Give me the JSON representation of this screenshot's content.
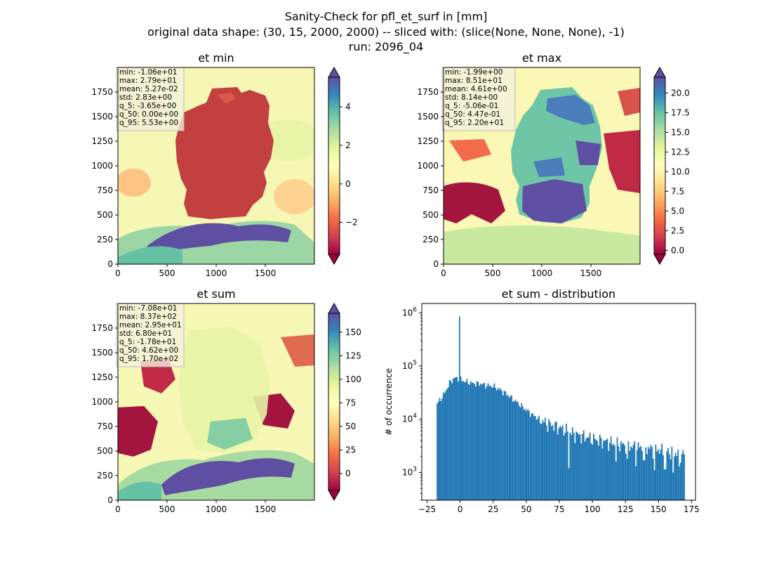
{
  "figure": {
    "title_lines": [
      "Sanity-Check for pfl_et_surf in [mm]",
      "original data shape: (30, 15, 2000, 2000) -- sliced with: (slice(None, None, None), -1)",
      "run: 2096_04"
    ]
  },
  "chart_data": [
    {
      "type": "heatmap",
      "title": "et min",
      "x_ticks": [
        0,
        500,
        1000,
        1500
      ],
      "y_ticks": [
        0,
        250,
        500,
        750,
        1000,
        1250,
        1500,
        1750
      ],
      "xlim": [
        0,
        2000
      ],
      "ylim": [
        0,
        2000
      ],
      "colormap": "Spectral",
      "colorbar": {
        "range": [
          -3.65,
          5.53
        ],
        "ticks": [
          -2,
          0,
          2,
          4
        ],
        "extend": "both"
      },
      "stats": [
        "min: -1.06e+01",
        "max: 2.79e+01",
        "mean: 5.27e-02",
        "std: 2.83e+00",
        "q_5: -3.65e+00",
        "q_50: 0.00e+00",
        "q_95: 5.53e+00"
      ]
    },
    {
      "type": "heatmap",
      "title": "et max",
      "x_ticks": [
        0,
        500,
        1000,
        1500
      ],
      "y_ticks": [
        0,
        250,
        500,
        750,
        1000,
        1250,
        1500,
        1750
      ],
      "xlim": [
        0,
        2000
      ],
      "ylim": [
        0,
        2000
      ],
      "colormap": "Spectral",
      "colorbar": {
        "range": [
          -0.506,
          22.0
        ],
        "ticks": [
          "0.0",
          "2.5",
          "5.0",
          "7.5",
          "10.0",
          "12.5",
          "15.0",
          "17.5",
          "20.0"
        ],
        "extend": "both"
      },
      "stats": [
        "min: -1.99e+00",
        "max: 8.51e+01",
        "mean: 4.61e+00",
        "std: 8.14e+00",
        "q_5: -5.06e-01",
        "q_50: 4.47e-01",
        "q_95: 2.20e+01"
      ]
    },
    {
      "type": "heatmap",
      "title": "et sum",
      "x_ticks": [
        0,
        500,
        1000,
        1500
      ],
      "y_ticks": [
        0,
        250,
        500,
        750,
        1000,
        1250,
        1500,
        1750
      ],
      "xlim": [
        0,
        2000
      ],
      "ylim": [
        0,
        2000
      ],
      "colormap": "Spectral",
      "colorbar": {
        "range": [
          -17.8,
          170.0
        ],
        "ticks": [
          0,
          25,
          50,
          75,
          100,
          125,
          150
        ],
        "extend": "both"
      },
      "stats": [
        "min: -7.08e+01",
        "max: 8.37e+02",
        "mean: 2.95e+01",
        "std: 6.80e+01",
        "q_5: -1.78e+01",
        "q_50: 4.62e+00",
        "q_95: 1.70e+02"
      ]
    },
    {
      "type": "bar",
      "title": "et sum - distribution",
      "ylabel": "# of occurrence",
      "xlabel": "",
      "yscale": "log",
      "xlim": [
        -29,
        178
      ],
      "ylim": [
        300,
        1500000
      ],
      "x_ticks": [
        -25,
        0,
        25,
        50,
        75,
        100,
        125,
        150,
        175
      ],
      "y_ticks": [
        {
          "value": 1000,
          "label": "10^3"
        },
        {
          "value": 10000,
          "label": "10^4"
        },
        {
          "value": 100000,
          "label": "10^5"
        },
        {
          "value": 1000000,
          "label": "10^6"
        }
      ],
      "color": "#1f77b4",
      "bins": {
        "start": -17.8,
        "end": 170.0,
        "count": 200
      },
      "envelope": [
        [
          -17.8,
          19000
        ],
        [
          -12,
          30000
        ],
        [
          -8,
          48000
        ],
        [
          -5,
          58000
        ],
        [
          -2,
          60000
        ],
        [
          0,
          58000
        ],
        [
          3,
          52000
        ],
        [
          10,
          47000
        ],
        [
          15,
          47000
        ],
        [
          20,
          43000
        ],
        [
          25,
          42000
        ],
        [
          30,
          36000
        ],
        [
          35,
          30000
        ],
        [
          40,
          24000
        ],
        [
          45,
          19000
        ],
        [
          50,
          15000
        ],
        [
          55,
          12000
        ],
        [
          60,
          10000
        ],
        [
          65,
          8500
        ],
        [
          70,
          7800
        ],
        [
          75,
          7000
        ],
        [
          80,
          6300
        ],
        [
          85,
          5500
        ],
        [
          90,
          5000
        ],
        [
          95,
          4700
        ],
        [
          100,
          4300
        ],
        [
          110,
          3800
        ],
        [
          120,
          3400
        ],
        [
          130,
          3100
        ],
        [
          140,
          2900
        ],
        [
          150,
          2700
        ],
        [
          160,
          2400
        ],
        [
          170,
          2200
        ]
      ],
      "spike": {
        "x": 0,
        "value": 850000
      },
      "low_dips": [
        [
          82,
          1200
        ],
        [
          118,
          1600
        ],
        [
          133,
          1300
        ],
        [
          147,
          1100
        ],
        [
          155,
          1150
        ],
        [
          161,
          1000
        ],
        [
          166,
          1300
        ],
        [
          139,
          1700
        ],
        [
          126,
          1800
        ]
      ]
    }
  ]
}
